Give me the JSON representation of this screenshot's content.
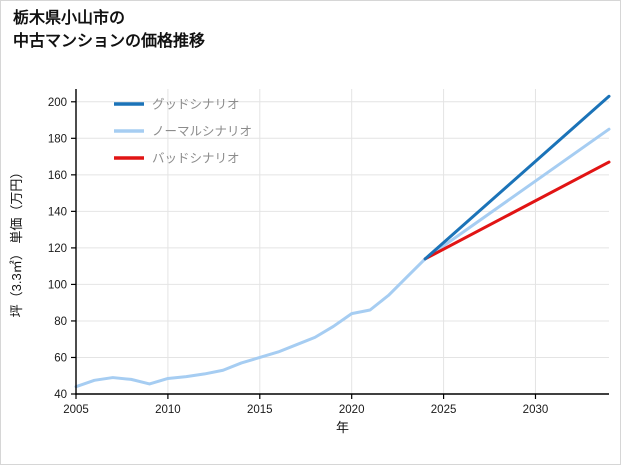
{
  "title": "栃木県小山市の\n中古マンションの価格推移",
  "chart_data": {
    "type": "line",
    "title": "栃木県小山市の中古マンションの価格推移",
    "xlabel": "年",
    "ylabel": "坪（3.3㎡） 単価（万円）",
    "xlim": [
      2005,
      2034
    ],
    "ylim": [
      40,
      207
    ],
    "xticks": [
      2005,
      2010,
      2015,
      2020,
      2025,
      2030
    ],
    "yticks": [
      40,
      60,
      80,
      100,
      120,
      140,
      160,
      180,
      200
    ],
    "grid": true,
    "grid_color": "#e4e4e4",
    "axis_color": "#000000",
    "tick_label_color": "#1a1a1a",
    "legend_position": "top-left",
    "legend_text_color": "#8c8c8c",
    "series": [
      {
        "name": "グッドシナリオ",
        "color": "#1b73b8",
        "width": 3,
        "x": [
          2024,
          2034
        ],
        "y": [
          114,
          203
        ]
      },
      {
        "name": "ノーマルシナリオ",
        "color": "#a6cdf2",
        "width": 3,
        "x": [
          2005,
          2006,
          2007,
          2008,
          2009,
          2010,
          2011,
          2012,
          2013,
          2014,
          2015,
          2016,
          2017,
          2018,
          2019,
          2020,
          2021,
          2022,
          2023,
          2024,
          2034
        ],
        "y": [
          44,
          47.5,
          49,
          48,
          45.5,
          48.5,
          49.5,
          51,
          53,
          57,
          60,
          63,
          67,
          71,
          77,
          84,
          86,
          94,
          104,
          114,
          185
        ]
      },
      {
        "name": "バッドシナリオ",
        "color": "#e11414",
        "width": 3,
        "x": [
          2024,
          2034
        ],
        "y": [
          114,
          167
        ]
      }
    ]
  }
}
